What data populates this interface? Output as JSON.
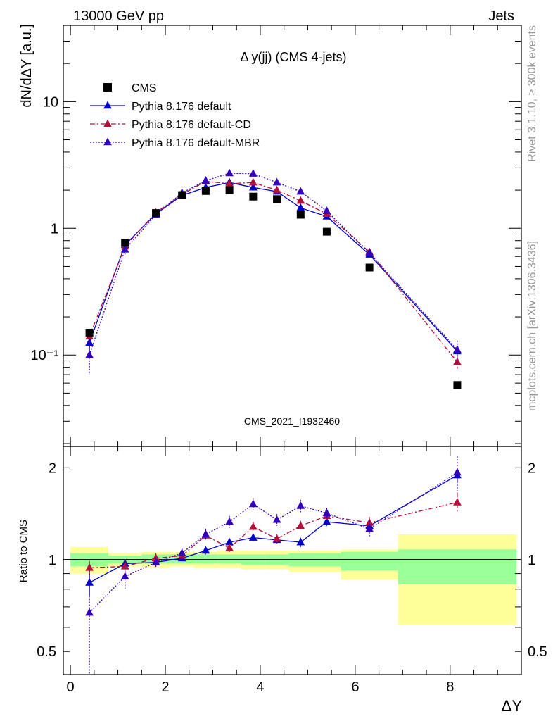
{
  "header": {
    "left": "13000 GeV pp",
    "right": "Jets"
  },
  "side_text": {
    "rivet": "Rivet 3.1.10, ≥ 300k events",
    "mcplots": "mcplots.cern.ch [arXiv:1306.3436]"
  },
  "chart_data": [
    {
      "type": "scatter",
      "title": "Δ y(jj) (CMS 4-jets)",
      "watermark": "CMS_2021_I1932460",
      "ylabel": "dN/dΔY [a.u.]",
      "xlabel": "",
      "xlim": [
        -0.15,
        9.5
      ],
      "ylim": [
        0.019,
        40
      ],
      "yscale": "log",
      "y_ticks": [
        {
          "value": 0.1,
          "label": "10⁻¹"
        },
        {
          "value": 1,
          "label": "1"
        },
        {
          "value": 10,
          "label": "10"
        }
      ],
      "legend_position": "top-left",
      "series": [
        {
          "name": "CMS",
          "style": "square",
          "color": "#000000",
          "x": [
            0.4,
            1.15,
            1.8,
            2.35,
            2.85,
            3.35,
            3.85,
            4.35,
            4.85,
            5.4,
            6.3,
            8.15
          ],
          "y": [
            0.15,
            0.77,
            1.32,
            1.83,
            1.97,
            2.0,
            1.78,
            1.7,
            1.28,
            0.94,
            0.49,
            0.058
          ]
        },
        {
          "name": "Pythia 8.176 default",
          "style": "solid",
          "color": "#0000cc",
          "x": [
            0.4,
            1.15,
            1.8,
            2.35,
            2.85,
            3.35,
            3.85,
            4.35,
            4.85,
            5.4,
            6.3,
            8.15
          ],
          "y": [
            0.125,
            0.74,
            1.3,
            1.82,
            2.1,
            2.3,
            2.1,
            1.95,
            1.45,
            1.24,
            0.62,
            0.107
          ],
          "err": [
            0.02,
            0.04,
            0.04,
            0.05,
            0.06,
            0.06,
            0.06,
            0.06,
            0.05,
            0.05,
            0.03,
            0.01
          ]
        },
        {
          "name": "Pythia 8.176 default-CD",
          "style": "dashdot",
          "color": "#b0103a",
          "x": [
            0.4,
            1.15,
            1.8,
            2.35,
            2.85,
            3.35,
            3.85,
            4.35,
            4.85,
            5.4,
            6.3,
            8.15
          ],
          "y": [
            0.14,
            0.72,
            1.33,
            1.85,
            2.35,
            2.25,
            2.3,
            2.0,
            1.65,
            1.3,
            0.65,
            0.088
          ],
          "err": [
            0.015,
            0.05,
            0.05,
            0.06,
            0.07,
            0.07,
            0.08,
            0.07,
            0.06,
            0.05,
            0.03,
            0.01
          ]
        },
        {
          "name": "Pythia 8.176 default-MBR",
          "style": "dotted",
          "color": "#3300bb",
          "x": [
            0.4,
            1.15,
            1.8,
            2.35,
            2.85,
            3.35,
            3.85,
            4.35,
            4.85,
            5.4,
            6.3,
            8.15
          ],
          "y": [
            0.1,
            0.68,
            1.28,
            1.9,
            2.38,
            2.72,
            2.7,
            2.3,
            1.95,
            1.37,
            0.64,
            0.11
          ],
          "err": [
            0.03,
            0.06,
            0.05,
            0.07,
            0.08,
            0.09,
            0.09,
            0.08,
            0.07,
            0.06,
            0.04,
            0.02
          ]
        }
      ]
    },
    {
      "type": "line",
      "title": "",
      "ylabel": "Ratio to CMS",
      "xlabel": "ΔY",
      "xlim": [
        -0.15,
        9.5
      ],
      "ylim": [
        0.42,
        2.35
      ],
      "yscale": "log",
      "x_ticks": [
        0,
        2,
        4,
        6,
        8
      ],
      "y_ticks": [
        0.5,
        1,
        2
      ],
      "reference_line": 1,
      "bands": [
        {
          "x0": 0.0,
          "x1": 0.8,
          "inner": [
            0.95,
            1.05
          ],
          "outer": [
            0.9,
            1.1
          ]
        },
        {
          "x0": 0.8,
          "x1": 1.5,
          "inner": [
            0.97,
            1.03
          ],
          "outer": [
            0.95,
            1.05
          ]
        },
        {
          "x0": 1.5,
          "x1": 2.1,
          "inner": [
            0.97,
            1.04
          ],
          "outer": [
            0.94,
            1.06
          ]
        },
        {
          "x0": 2.1,
          "x1": 2.6,
          "inner": [
            0.97,
            1.04
          ],
          "outer": [
            0.95,
            1.06
          ]
        },
        {
          "x0": 2.6,
          "x1": 3.1,
          "inner": [
            0.97,
            1.04
          ],
          "outer": [
            0.94,
            1.06
          ]
        },
        {
          "x0": 3.1,
          "x1": 3.6,
          "inner": [
            0.97,
            1.04
          ],
          "outer": [
            0.94,
            1.07
          ]
        },
        {
          "x0": 3.6,
          "x1": 4.1,
          "inner": [
            0.96,
            1.04
          ],
          "outer": [
            0.93,
            1.07
          ]
        },
        {
          "x0": 4.1,
          "x1": 4.6,
          "inner": [
            0.96,
            1.04
          ],
          "outer": [
            0.93,
            1.07
          ]
        },
        {
          "x0": 4.6,
          "x1": 5.2,
          "inner": [
            0.95,
            1.05
          ],
          "outer": [
            0.91,
            1.07
          ]
        },
        {
          "x0": 5.2,
          "x1": 5.7,
          "inner": [
            0.95,
            1.05
          ],
          "outer": [
            0.91,
            1.07
          ]
        },
        {
          "x0": 5.7,
          "x1": 6.9,
          "inner": [
            0.92,
            1.06
          ],
          "outer": [
            0.86,
            1.08
          ]
        },
        {
          "x0": 6.9,
          "x1": 9.4,
          "inner": [
            0.83,
            1.08
          ],
          "outer": [
            0.61,
            1.21
          ]
        }
      ],
      "band_colors": {
        "inner": "#99ff99",
        "outer": "#ffff99"
      },
      "series": [
        {
          "name": "Pythia 8.176 default",
          "style": "solid",
          "color": "#0000cc",
          "x": [
            0.4,
            1.15,
            1.8,
            2.35,
            2.85,
            3.35,
            3.85,
            4.35,
            4.85,
            5.4,
            6.3,
            8.15
          ],
          "y": [
            0.84,
            0.97,
            0.98,
            1.01,
            1.07,
            1.14,
            1.18,
            1.16,
            1.14,
            1.33,
            1.29,
            1.89
          ],
          "err": [
            0.08,
            0.03,
            0.03,
            0.02,
            0.03,
            0.03,
            0.03,
            0.03,
            0.04,
            0.04,
            0.05,
            0.1
          ]
        },
        {
          "name": "Pythia 8.176 default-CD",
          "style": "dashdot",
          "color": "#b0103a",
          "x": [
            0.4,
            1.15,
            1.8,
            2.35,
            2.85,
            3.35,
            3.85,
            4.35,
            4.85,
            5.4,
            6.3,
            8.15
          ],
          "y": [
            0.94,
            0.95,
            1.01,
            1.03,
            1.2,
            1.09,
            1.28,
            1.17,
            1.29,
            1.39,
            1.32,
            1.54
          ],
          "err": [
            0.05,
            0.05,
            0.04,
            0.04,
            0.04,
            0.04,
            0.05,
            0.04,
            0.05,
            0.05,
            0.06,
            0.12
          ]
        },
        {
          "name": "Pythia 8.176 default-MBR",
          "style": "dotted",
          "color": "#3300bb",
          "x": [
            0.4,
            1.15,
            1.8,
            2.35,
            2.85,
            3.35,
            3.85,
            4.35,
            4.85,
            5.4,
            6.3,
            8.15
          ],
          "y": [
            0.67,
            0.88,
            0.98,
            1.05,
            1.21,
            1.33,
            1.52,
            1.35,
            1.5,
            1.42,
            1.26,
            1.93
          ],
          "err": [
            0.25,
            0.08,
            0.04,
            0.04,
            0.05,
            0.06,
            0.07,
            0.06,
            0.07,
            0.06,
            0.08,
            0.25
          ]
        }
      ]
    }
  ]
}
